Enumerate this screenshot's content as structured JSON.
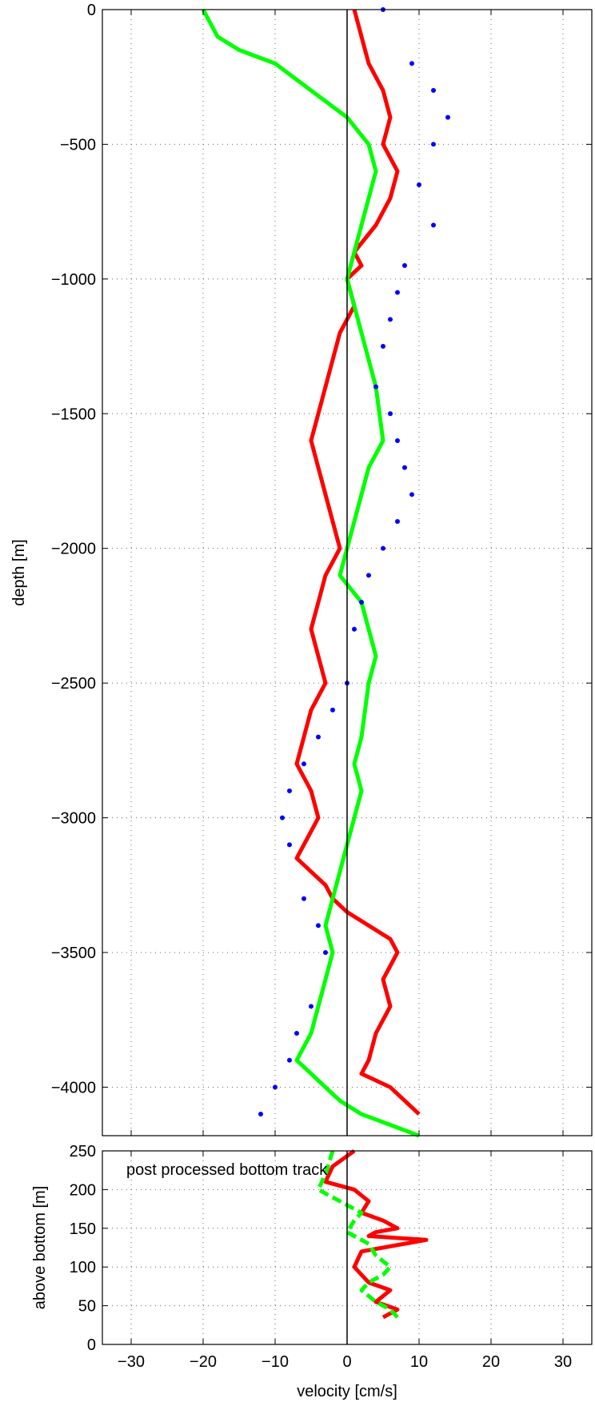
{
  "chart_data": [
    {
      "type": "line",
      "panel": "top",
      "xlabel": "",
      "ylabel": "depth [m]",
      "xlim": [
        -34,
        34
      ],
      "ylim": [
        -4180,
        0
      ],
      "grid": true,
      "x_ticks": [
        -30,
        -20,
        -10,
        0,
        10,
        20,
        30
      ],
      "y_ticks": [
        0,
        -500,
        -1000,
        -1500,
        -2000,
        -2500,
        -3000,
        -3500,
        -4000
      ],
      "y_tick_labels": [
        "0",
        "−500",
        "−1000",
        "−1500",
        "−2000",
        "−2500",
        "−3000",
        "−3500",
        "−4000"
      ],
      "series": [
        {
          "color": "#ff0000",
          "style": "thick line",
          "x": [
            1,
            2,
            3,
            5,
            6,
            5,
            7,
            6,
            4,
            1,
            2,
            0,
            1,
            -1,
            -2,
            -3,
            -4,
            -5,
            -4,
            -3,
            -2,
            -1,
            -3,
            -4,
            -5,
            -4,
            -3,
            -5,
            -6,
            -7,
            -5,
            -4,
            -5,
            -6,
            -7,
            -5,
            -3,
            -2,
            0,
            3,
            6,
            7,
            5,
            6,
            5,
            4,
            3,
            2,
            6,
            8,
            10
          ],
          "y": [
            0,
            -100,
            -200,
            -300,
            -400,
            -500,
            -600,
            -700,
            -800,
            -900,
            -950,
            -1000,
            -1100,
            -1200,
            -1300,
            -1400,
            -1500,
            -1600,
            -1700,
            -1800,
            -1900,
            -2000,
            -2100,
            -2200,
            -2300,
            -2400,
            -2500,
            -2600,
            -2700,
            -2800,
            -2900,
            -3000,
            -3050,
            -3100,
            -3150,
            -3200,
            -3250,
            -3300,
            -3350,
            -3400,
            -3450,
            -3500,
            -3600,
            -3700,
            -3750,
            -3800,
            -3900,
            -3950,
            -4000,
            -4050,
            -4100
          ]
        },
        {
          "color": "#00ff00",
          "style": "thick line",
          "x": [
            -20,
            -18,
            -15,
            -10,
            -5,
            0,
            3,
            4,
            3,
            2,
            1,
            0,
            1,
            2,
            3,
            4,
            5,
            3,
            2,
            1,
            0,
            -1,
            2,
            3,
            4,
            3,
            2,
            1,
            2,
            1,
            0,
            -1,
            -2,
            -3,
            -2,
            -3,
            -4,
            -5,
            -6,
            -7,
            -5,
            -3,
            -1,
            2,
            4,
            6,
            8,
            10
          ],
          "y": [
            0,
            -100,
            -150,
            -200,
            -300,
            -400,
            -500,
            -600,
            -700,
            -800,
            -900,
            -1000,
            -1100,
            -1200,
            -1300,
            -1400,
            -1600,
            -1700,
            -1800,
            -1900,
            -2000,
            -2100,
            -2200,
            -2300,
            -2400,
            -2500,
            -2700,
            -2800,
            -2900,
            -3000,
            -3100,
            -3200,
            -3300,
            -3400,
            -3500,
            -3600,
            -3700,
            -3800,
            -3850,
            -3900,
            -3950,
            -4000,
            -4050,
            -4100,
            -4120,
            -4140,
            -4160,
            -4180
          ]
        },
        {
          "color": "#0000ff",
          "style": "dots",
          "x": [
            5,
            9,
            12,
            14,
            12,
            10,
            12,
            8,
            7,
            6,
            5,
            4,
            6,
            7,
            8,
            9,
            7,
            5,
            3,
            2,
            1,
            0,
            -2,
            -4,
            -6,
            -8,
            -9,
            -8,
            -6,
            -4,
            -3,
            -5,
            -7,
            -8,
            -10,
            -12
          ],
          "y": [
            0,
            -200,
            -300,
            -400,
            -500,
            -650,
            -800,
            -950,
            -1050,
            -1150,
            -1250,
            -1400,
            -1500,
            -1600,
            -1700,
            -1800,
            -1900,
            -2000,
            -2100,
            -2200,
            -2300,
            -2500,
            -2600,
            -2700,
            -2800,
            -2900,
            -3000,
            -3100,
            -3300,
            -3400,
            -3500,
            -3700,
            -3800,
            -3900,
            -4000,
            -4100
          ]
        }
      ]
    },
    {
      "type": "line",
      "panel": "bottom",
      "xlabel": "velocity [cm/s]",
      "ylabel": "above bottom [m]",
      "annotation": "post processed bottom track",
      "xlim": [
        -34,
        34
      ],
      "ylim": [
        0,
        250
      ],
      "grid": true,
      "x_ticks": [
        -30,
        -20,
        -10,
        0,
        10,
        20,
        30
      ],
      "x_tick_labels": [
        "−30",
        "−20",
        "−10",
        "0",
        "10",
        "20",
        "30"
      ],
      "y_ticks": [
        0,
        50,
        100,
        150,
        200,
        250
      ],
      "series": [
        {
          "color": "#ff0000",
          "style": "thick line",
          "x": [
            1,
            -2,
            -3,
            1,
            3,
            2,
            5,
            7,
            4,
            3,
            11,
            2,
            1,
            3,
            6,
            4,
            7,
            5
          ],
          "y": [
            250,
            230,
            210,
            200,
            185,
            170,
            160,
            150,
            145,
            140,
            135,
            120,
            100,
            80,
            70,
            55,
            45,
            35
          ]
        },
        {
          "color": "#00ff00",
          "style": "thick dashed",
          "x": [
            -2,
            -3,
            -4,
            0,
            2,
            1,
            0,
            3,
            4,
            6,
            5,
            3,
            2,
            4,
            6,
            7
          ],
          "y": [
            250,
            220,
            200,
            180,
            170,
            160,
            145,
            130,
            115,
            100,
            90,
            80,
            70,
            55,
            45,
            35
          ]
        }
      ]
    }
  ]
}
